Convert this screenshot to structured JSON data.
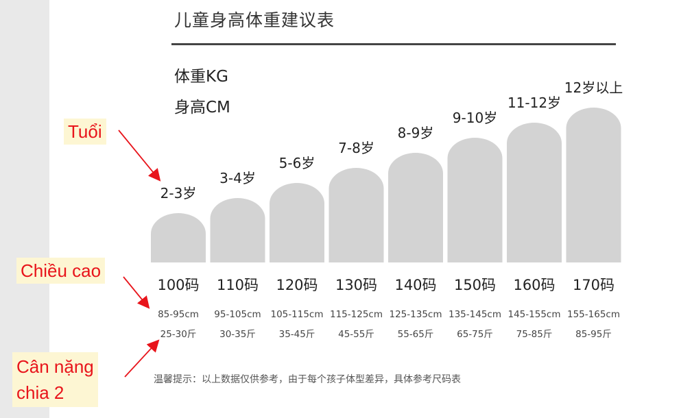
{
  "title": "儿童身高体重建议表",
  "legend": {
    "weight": "体重KG",
    "height": "身高CM"
  },
  "callouts": {
    "age": "Tuổi",
    "height": "Chiều cao",
    "weight_line1": "Cân nặng",
    "weight_line2": "chia 2"
  },
  "note": "温馨提示：以上数据仅供参考，由于每个孩子体型差异，具体参考尺码表",
  "colors": {
    "bar": "#d3d3d3",
    "callout_text": "#e8141b",
    "callout_bg": "#fdf6d3",
    "rule": "#444444"
  },
  "chart_data": {
    "type": "bar",
    "title": "儿童身高体重建议表",
    "categories": [
      "100码",
      "110码",
      "120码",
      "130码",
      "140码",
      "150码",
      "160码",
      "170码"
    ],
    "ages": [
      "2-3岁",
      "3-4岁",
      "5-6岁",
      "7-8岁",
      "8-9岁",
      "9-10岁",
      "11-12岁",
      "12岁以上"
    ],
    "heights": [
      "85-95cm",
      "95-105cm",
      "105-115cm",
      "115-125cm",
      "125-135cm",
      "135-145cm",
      "145-155cm",
      "155-165cm"
    ],
    "weights": [
      "25-30斤",
      "30-35斤",
      "35-45斤",
      "45-55斤",
      "55-65斤",
      "65-75斤",
      "75-85斤",
      "85-95斤"
    ],
    "values": [
      1,
      2,
      3,
      4,
      5,
      6,
      7,
      8
    ],
    "ylim": [
      0,
      8
    ],
    "grid": false
  }
}
